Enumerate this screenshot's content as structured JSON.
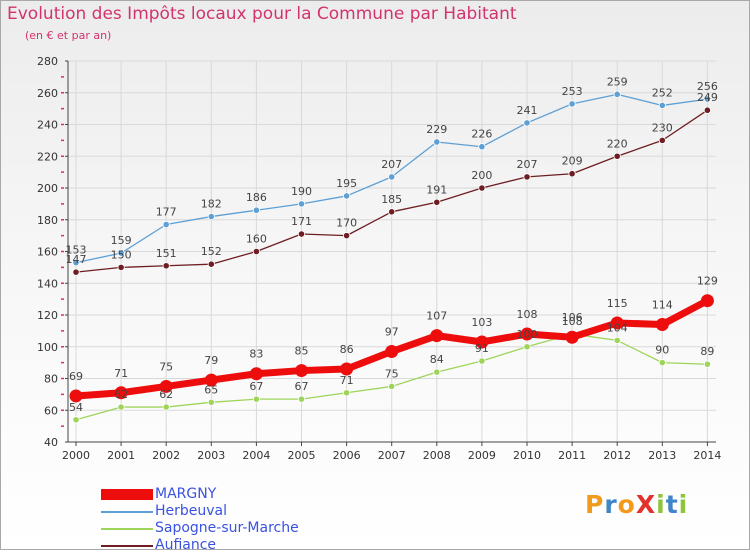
{
  "title": "Evolution des Impôts locaux pour la Commune par Habitant",
  "subtitle": "(en € et par an)",
  "logo": "ProXiti",
  "colors": {
    "title": "#d2336e",
    "axis_text": "#333333",
    "legend_text": "#3a52e0",
    "grid": "#d9d9d9",
    "tick_red": "#d2336e"
  },
  "chart_data": {
    "type": "line",
    "title": "Evolution des Impôts locaux pour la Commune par Habitant",
    "subtitle": "(en € et par an)",
    "x": [
      2000,
      2001,
      2002,
      2003,
      2004,
      2005,
      2006,
      2007,
      2008,
      2009,
      2010,
      2011,
      2012,
      2013,
      2014
    ],
    "ylim": [
      40,
      280
    ],
    "yticks": [
      40,
      60,
      80,
      100,
      120,
      140,
      160,
      180,
      200,
      220,
      240,
      260,
      280
    ],
    "grid": true,
    "legend_position": "bottom-left",
    "series": [
      {
        "name": "Aufiance",
        "color": "#6e1e22",
        "values": [
          147,
          150,
          151,
          152,
          160,
          171,
          170,
          185,
          191,
          200,
          207,
          209,
          220,
          230,
          249
        ]
      },
      {
        "name": "Herbeuval",
        "color": "#5e9fd4",
        "values": [
          153,
          159,
          177,
          182,
          186,
          190,
          195,
          207,
          229,
          226,
          241,
          253,
          259,
          252,
          256
        ]
      },
      {
        "name": "Sapogne-sur-Marche",
        "color": "#9fd45a",
        "values": [
          54,
          62,
          62,
          65,
          67,
          67,
          71,
          75,
          84,
          91,
          100,
          108,
          104,
          90,
          89
        ]
      },
      {
        "name": "MARGNY",
        "color": "#ee0d0d",
        "values": [
          69,
          71,
          75,
          79,
          83,
          85,
          86,
          97,
          107,
          103,
          108,
          106,
          115,
          114,
          129
        ]
      }
    ]
  },
  "legend": [
    {
      "label": "MARGNY",
      "color": "#ee0d0d"
    },
    {
      "label": "Herbeuval",
      "color": "#5e9fd4"
    },
    {
      "label": "Sapogne-sur-Marche",
      "color": "#9fd45a"
    },
    {
      "label": "Aufiance",
      "color": "#6e1e22"
    }
  ]
}
